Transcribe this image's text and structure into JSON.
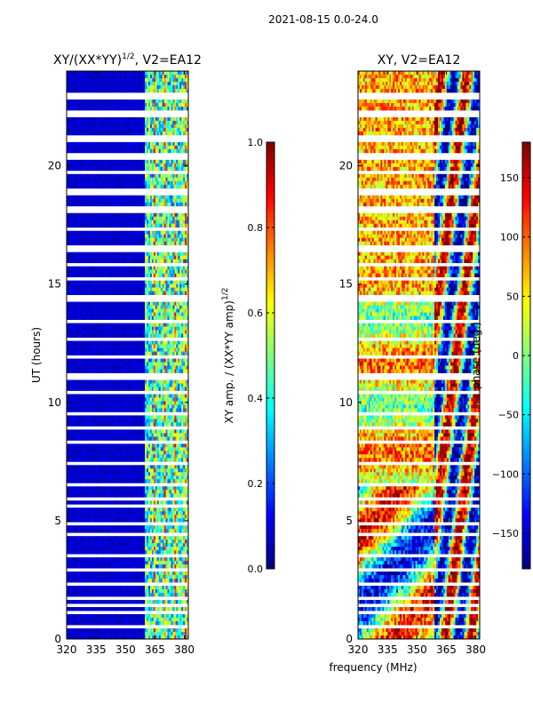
{
  "suptitle": "2021-08-15 0.0-24.0",
  "xlabel_shared": "frequency (MHz)",
  "colors": {
    "cmap": "jet",
    "flag": "#ffffff",
    "frame": "#000000"
  },
  "chart_data": [
    {
      "type": "heatmap",
      "title": "XY/(XX*YY)",
      "title_sup": "1/2",
      "title_tail": ", V2=EA12",
      "ylabel": "UT (hours)",
      "x_ticks": [
        320,
        335,
        350,
        365,
        380
      ],
      "xlim": [
        320,
        382
      ],
      "y_ticks": [
        0,
        5,
        10,
        15,
        20
      ],
      "ylim": [
        0,
        24
      ],
      "quantity": "normalized XY amplitude",
      "colorbar": {
        "label": "XY amp. / (XX*YY amp)",
        "label_sup": "1/2",
        "ticks": [
          "0.0",
          "0.2",
          "0.4",
          "0.6",
          "0.8",
          "1.0"
        ],
        "range": [
          0.0,
          1.0
        ]
      }
    },
    {
      "type": "heatmap",
      "title": "XY, V2=EA12",
      "ylabel": "",
      "x_ticks": [
        320,
        335,
        350,
        365,
        380
      ],
      "xlim": [
        320,
        382
      ],
      "y_ticks": [
        0,
        5,
        10,
        15,
        20
      ],
      "ylim": [
        0,
        24
      ],
      "quantity": "XY phase",
      "colorbar": {
        "label": "phase (deg.)",
        "ticks": [
          "−150",
          "−100",
          "−50",
          "0",
          "50",
          "100",
          "150"
        ],
        "tick_values": [
          -150,
          -100,
          -50,
          0,
          50,
          100,
          150
        ],
        "range": [
          -180,
          180
        ]
      }
    }
  ]
}
